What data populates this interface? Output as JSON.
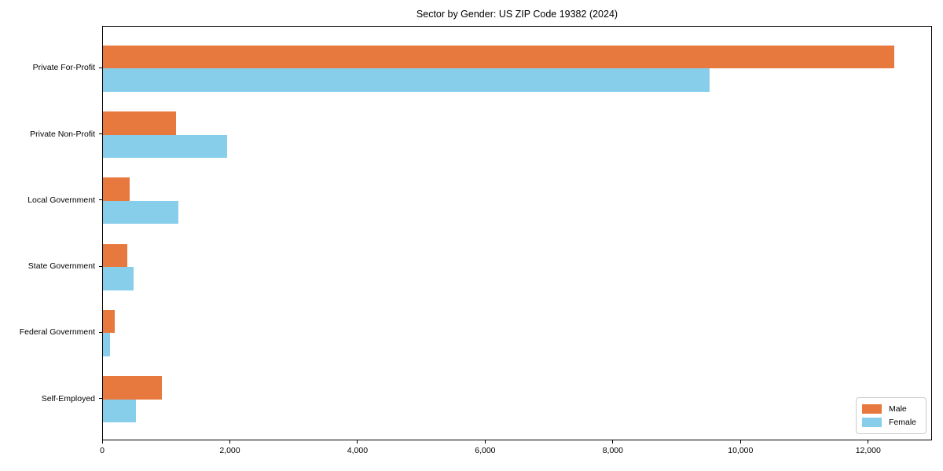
{
  "chart_data": {
    "type": "bar",
    "orientation": "horizontal",
    "title": "Sector by Gender: US ZIP Code 19382 (2024)",
    "categories": [
      "Private For-Profit",
      "Private Non-Profit",
      "Local Government",
      "State Government",
      "Federal Government",
      "Self-Employed"
    ],
    "series": [
      {
        "name": "Male",
        "color": "#e8793e",
        "values": [
          12400,
          1150,
          420,
          380,
          180,
          920
        ]
      },
      {
        "name": "Female",
        "color": "#87ceeb",
        "values": [
          9500,
          1950,
          1180,
          480,
          110,
          520
        ]
      }
    ],
    "xlabel": "",
    "ylabel": "",
    "xlim": [
      0,
      13000
    ],
    "xticks": [
      0,
      2000,
      4000,
      6000,
      8000,
      10000,
      12000
    ],
    "xtick_labels": [
      "0",
      "2,000",
      "4,000",
      "6,000",
      "8,000",
      "10,000",
      "12,000"
    ],
    "grid": false,
    "legend_position": "lower right",
    "colors": {
      "axis": "#000000",
      "background": "#ffffff",
      "legend_border": "#cccccc"
    }
  }
}
